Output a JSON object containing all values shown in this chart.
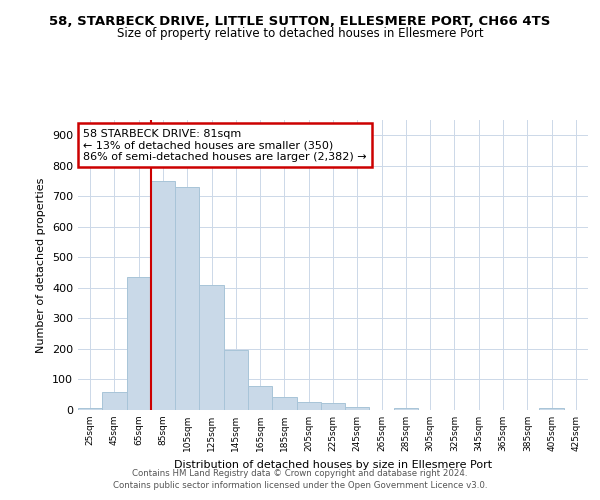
{
  "title": "58, STARBECK DRIVE, LITTLE SUTTON, ELLESMERE PORT, CH66 4TS",
  "subtitle": "Size of property relative to detached houses in Ellesmere Port",
  "xlabel": "Distribution of detached houses by size in Ellesmere Port",
  "ylabel": "Number of detached properties",
  "bar_color": "#c9d9e8",
  "bar_edge_color": "#a8c4d8",
  "categories": [
    "25sqm",
    "45sqm",
    "65sqm",
    "85sqm",
    "105sqm",
    "125sqm",
    "145sqm",
    "165sqm",
    "185sqm",
    "205sqm",
    "225sqm",
    "245sqm",
    "265sqm",
    "285sqm",
    "305sqm",
    "325sqm",
    "345sqm",
    "365sqm",
    "385sqm",
    "405sqm",
    "425sqm"
  ],
  "values": [
    8,
    60,
    435,
    750,
    730,
    410,
    197,
    80,
    42,
    25,
    22,
    10,
    0,
    5,
    0,
    0,
    0,
    0,
    0,
    7,
    0
  ],
  "red_line_bin_index": 3,
  "annotation_text": "58 STARBECK DRIVE: 81sqm\n← 13% of detached houses are smaller (350)\n86% of semi-detached houses are larger (2,382) →",
  "annotation_box_color": "white",
  "annotation_box_edge_color": "#cc0000",
  "grid_color": "#ccd8e8",
  "background_color": "white",
  "footer1": "Contains HM Land Registry data © Crown copyright and database right 2024.",
  "footer2": "Contains public sector information licensed under the Open Government Licence v3.0.",
  "ylim": [
    0,
    950
  ],
  "yticks": [
    0,
    100,
    200,
    300,
    400,
    500,
    600,
    700,
    800,
    900
  ]
}
